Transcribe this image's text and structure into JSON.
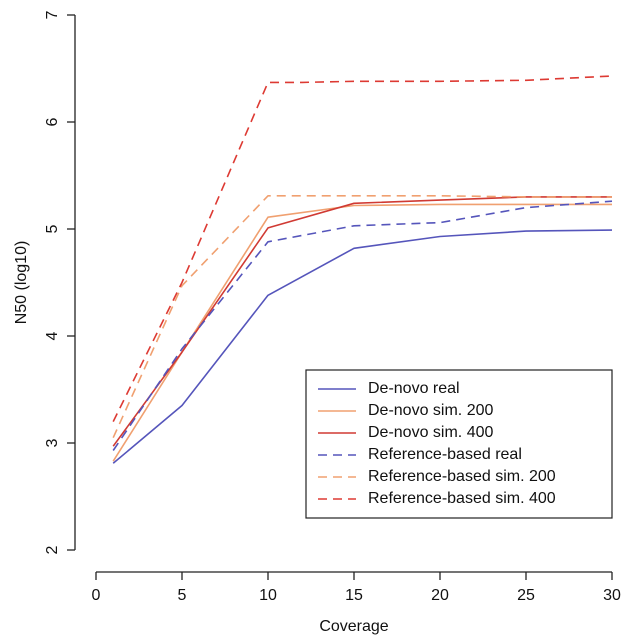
{
  "chart_data": {
    "type": "line",
    "title": "",
    "xlabel": "Coverage",
    "ylabel": "N50 (log10)",
    "xlim": [
      0,
      30
    ],
    "ylim": [
      2,
      7
    ],
    "x_ticks": [
      0,
      5,
      10,
      15,
      20,
      25,
      30
    ],
    "y_ticks": [
      2,
      3,
      4,
      5,
      6,
      7
    ],
    "x_tick_labels": [
      "0",
      "5",
      "10",
      "15",
      "20",
      "25",
      "30"
    ],
    "y_tick_labels": [
      "2",
      "3",
      "4",
      "5",
      "6",
      "7"
    ],
    "grid": false,
    "legend_position": "bottom-right",
    "series": [
      {
        "name": "De-novo real",
        "color": "#5555bb",
        "dash": "solid",
        "x": [
          1,
          5,
          10,
          15,
          20,
          25,
          30
        ],
        "y": [
          2.81,
          3.35,
          4.38,
          4.82,
          4.93,
          4.98,
          4.99
        ]
      },
      {
        "name": "De-novo sim. 200",
        "color": "#f0a070",
        "dash": "solid",
        "x": [
          1,
          5,
          10,
          15,
          20,
          25,
          30
        ],
        "y": [
          2.83,
          3.85,
          5.11,
          5.22,
          5.23,
          5.23,
          5.23
        ]
      },
      {
        "name": "De-novo sim. 400",
        "color": "#d03a33",
        "dash": "solid",
        "x": [
          1,
          5,
          10,
          15,
          20,
          25,
          30
        ],
        "y": [
          2.97,
          3.85,
          5.01,
          5.24,
          5.27,
          5.3,
          5.3
        ]
      },
      {
        "name": "Reference-based real",
        "color": "#5555bb",
        "dash": "dashed",
        "x": [
          1,
          5,
          10,
          15,
          20,
          25,
          30
        ],
        "y": [
          2.93,
          3.88,
          4.88,
          5.03,
          5.06,
          5.2,
          5.26
        ]
      },
      {
        "name": "Reference-based sim. 200",
        "color": "#f0a070",
        "dash": "dashed",
        "x": [
          1,
          5,
          10,
          15,
          20,
          25,
          30
        ],
        "y": [
          3.05,
          4.47,
          5.31,
          5.31,
          5.31,
          5.3,
          5.3
        ]
      },
      {
        "name": "Reference-based sim. 400",
        "color": "#dd3a33",
        "dash": "dashed",
        "x": [
          1,
          5,
          10,
          12,
          15,
          20,
          25,
          30
        ],
        "y": [
          3.2,
          4.5,
          6.37,
          6.37,
          6.38,
          6.38,
          6.39,
          6.43
        ]
      }
    ]
  }
}
